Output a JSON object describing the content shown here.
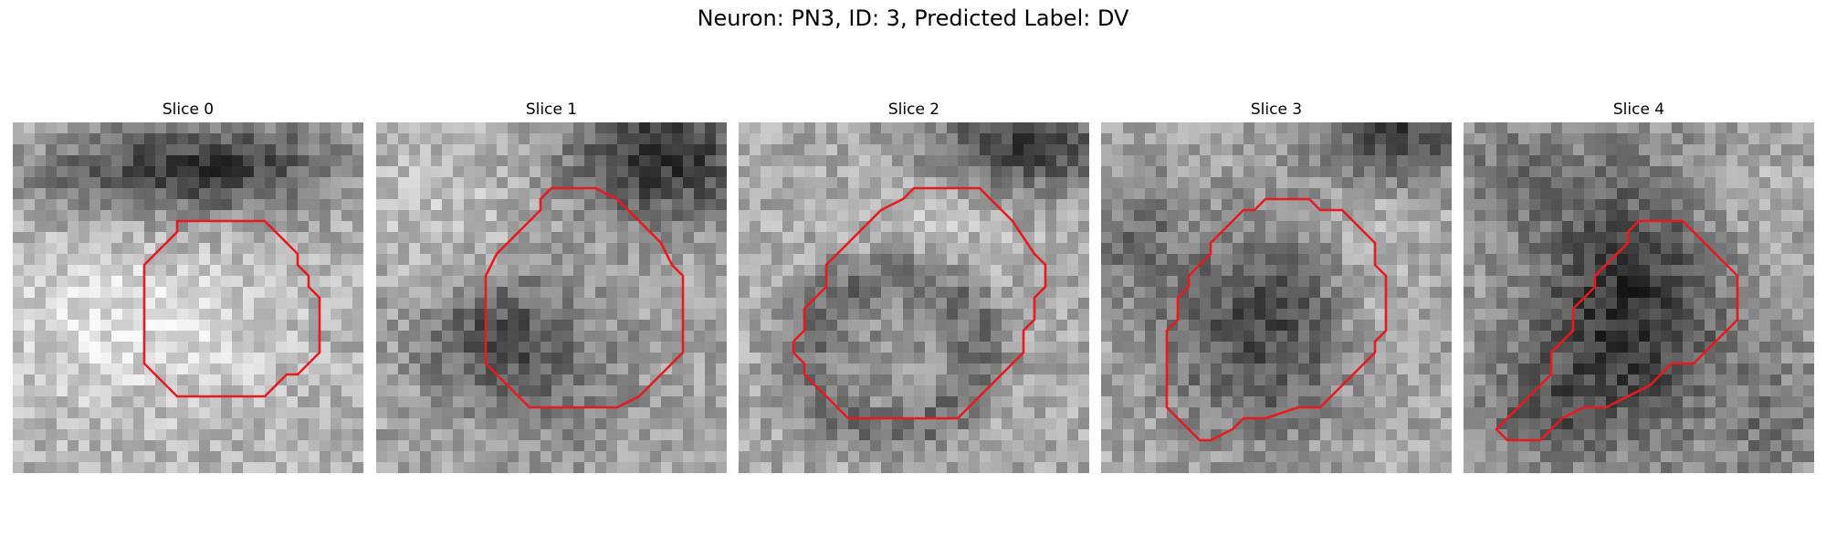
{
  "figure": {
    "title": "Neuron: PN3, ID: 3, Predicted Label: DV"
  },
  "panels": [
    {
      "title": "Slice 0",
      "pattern": "contour-small-bright-bg",
      "contour": [
        [
          15,
          9
        ],
        [
          23,
          9
        ],
        [
          26,
          12
        ],
        [
          26,
          13
        ],
        [
          27,
          14
        ],
        [
          27,
          15
        ],
        [
          28,
          16
        ],
        [
          28,
          17
        ],
        [
          28,
          18
        ],
        [
          28,
          19
        ],
        [
          28,
          20
        ],
        [
          28,
          21
        ],
        [
          27,
          22
        ],
        [
          26,
          23
        ],
        [
          25,
          23
        ],
        [
          24,
          24
        ],
        [
          23,
          25
        ],
        [
          21,
          25
        ],
        [
          19,
          25
        ],
        [
          17,
          25
        ],
        [
          15,
          25
        ],
        [
          14,
          24
        ],
        [
          13,
          23
        ],
        [
          12,
          22
        ],
        [
          12,
          21
        ],
        [
          12,
          19
        ],
        [
          12,
          17
        ],
        [
          12,
          15
        ],
        [
          12,
          13
        ],
        [
          13,
          12
        ],
        [
          14,
          11
        ],
        [
          15,
          10
        ]
      ]
    },
    {
      "title": "Slice 1",
      "pattern": "dark-top-right",
      "contour": [
        [
          16,
          6
        ],
        [
          20,
          6
        ],
        [
          22,
          7
        ],
        [
          23,
          8
        ],
        [
          24,
          9
        ],
        [
          25,
          10
        ],
        [
          26,
          11
        ],
        [
          27,
          13
        ],
        [
          28,
          14
        ],
        [
          28,
          16
        ],
        [
          28,
          18
        ],
        [
          28,
          20
        ],
        [
          28,
          21
        ],
        [
          27,
          22
        ],
        [
          26,
          23
        ],
        [
          25,
          24
        ],
        [
          24,
          25
        ],
        [
          22,
          26
        ],
        [
          20,
          26
        ],
        [
          17,
          26
        ],
        [
          14,
          26
        ],
        [
          13,
          25
        ],
        [
          12,
          24
        ],
        [
          11,
          23
        ],
        [
          10,
          22
        ],
        [
          10,
          20
        ],
        [
          10,
          18
        ],
        [
          10,
          16
        ],
        [
          10,
          14
        ],
        [
          11,
          12
        ],
        [
          12,
          11
        ],
        [
          13,
          10
        ],
        [
          14,
          9
        ],
        [
          15,
          8
        ],
        [
          15,
          7
        ]
      ]
    },
    {
      "title": "Slice 2",
      "pattern": "dark-ring-bottom",
      "contour": [
        [
          18,
          6
        ],
        [
          22,
          6
        ],
        [
          25,
          9
        ],
        [
          27,
          12
        ],
        [
          28,
          13
        ],
        [
          28,
          15
        ],
        [
          27,
          16
        ],
        [
          27,
          18
        ],
        [
          26,
          19
        ],
        [
          26,
          21
        ],
        [
          25,
          22
        ],
        [
          24,
          23
        ],
        [
          23,
          24
        ],
        [
          22,
          25
        ],
        [
          21,
          26
        ],
        [
          20,
          27
        ],
        [
          18,
          27
        ],
        [
          15,
          27
        ],
        [
          12,
          27
        ],
        [
          10,
          27
        ],
        [
          9,
          26
        ],
        [
          8,
          25
        ],
        [
          7,
          24
        ],
        [
          6,
          23
        ],
        [
          6,
          22
        ],
        [
          5,
          21
        ],
        [
          5,
          20
        ],
        [
          6,
          19
        ],
        [
          6,
          17
        ],
        [
          7,
          16
        ],
        [
          8,
          15
        ],
        [
          8,
          13
        ],
        [
          9,
          12
        ],
        [
          10,
          11
        ],
        [
          11,
          10
        ],
        [
          12,
          9
        ],
        [
          13,
          8
        ],
        [
          15,
          7
        ],
        [
          16,
          6
        ]
      ]
    },
    {
      "title": "Slice 3",
      "pattern": "dark-blob-center",
      "contour": [
        [
          15,
          7
        ],
        [
          19,
          7
        ],
        [
          20,
          8
        ],
        [
          22,
          8
        ],
        [
          23,
          9
        ],
        [
          24,
          10
        ],
        [
          25,
          11
        ],
        [
          25,
          13
        ],
        [
          26,
          14
        ],
        [
          26,
          16
        ],
        [
          26,
          18
        ],
        [
          26,
          19
        ],
        [
          25,
          20
        ],
        [
          25,
          21
        ],
        [
          24,
          22
        ],
        [
          23,
          23
        ],
        [
          22,
          24
        ],
        [
          21,
          25
        ],
        [
          20,
          26
        ],
        [
          18,
          26
        ],
        [
          15,
          27
        ],
        [
          13,
          27
        ],
        [
          12,
          28
        ],
        [
          10,
          29
        ],
        [
          9,
          29
        ],
        [
          8,
          28
        ],
        [
          7,
          27
        ],
        [
          6,
          26
        ],
        [
          6,
          24
        ],
        [
          6,
          21
        ],
        [
          6,
          19
        ],
        [
          7,
          18
        ],
        [
          7,
          16
        ],
        [
          8,
          15
        ],
        [
          8,
          14
        ],
        [
          9,
          13
        ],
        [
          10,
          12
        ],
        [
          10,
          11
        ],
        [
          11,
          10
        ],
        [
          12,
          9
        ],
        [
          13,
          8
        ],
        [
          14,
          8
        ]
      ]
    },
    {
      "title": "Slice 4",
      "pattern": "dark-blob-diagonal",
      "contour": [
        [
          16,
          9
        ],
        [
          20,
          9
        ],
        [
          23,
          12
        ],
        [
          24,
          13
        ],
        [
          25,
          14
        ],
        [
          25,
          16
        ],
        [
          25,
          18
        ],
        [
          24,
          19
        ],
        [
          23,
          20
        ],
        [
          22,
          21
        ],
        [
          21,
          22
        ],
        [
          19,
          22
        ],
        [
          18,
          23
        ],
        [
          17,
          24
        ],
        [
          15,
          25
        ],
        [
          13,
          26
        ],
        [
          11,
          26
        ],
        [
          9,
          27
        ],
        [
          8,
          28
        ],
        [
          7,
          29
        ],
        [
          6,
          29
        ],
        [
          4,
          29
        ],
        [
          3,
          28
        ],
        [
          4,
          27
        ],
        [
          6,
          25
        ],
        [
          7,
          24
        ],
        [
          8,
          23
        ],
        [
          8,
          21
        ],
        [
          9,
          20
        ],
        [
          10,
          19
        ],
        [
          10,
          17
        ],
        [
          11,
          16
        ],
        [
          12,
          15
        ],
        [
          12,
          14
        ],
        [
          13,
          13
        ],
        [
          14,
          12
        ],
        [
          15,
          11
        ],
        [
          15,
          10
        ]
      ]
    }
  ]
}
